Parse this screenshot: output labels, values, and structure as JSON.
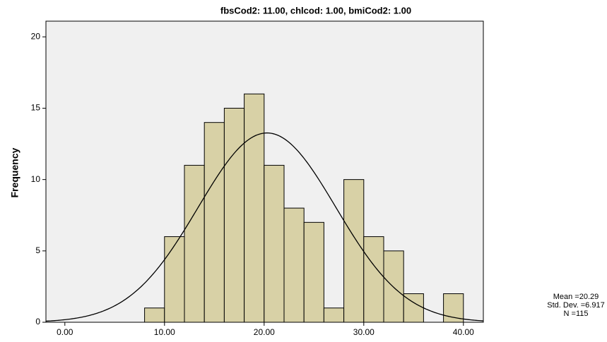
{
  "chart_data": {
    "type": "histogram",
    "title": "fbsCod2: 11.00, chlcod: 1.00, bmiCod2: 1.00",
    "y_label": "Frequency",
    "bins": [
      8,
      10,
      12,
      14,
      16,
      18,
      20,
      22,
      24,
      26,
      28,
      30,
      32,
      34,
      36,
      38,
      40
    ],
    "values": [
      1,
      6,
      11,
      14,
      15,
      16,
      11,
      8,
      7,
      1,
      10,
      6,
      5,
      2,
      0,
      2
    ],
    "color": "#d8d1a6",
    "background": "#f0f0f0",
    "xlim": [
      -1.9,
      42
    ],
    "ylim": [
      0,
      21.1
    ],
    "xticks": [
      {
        "value": 0,
        "label": "0.00"
      },
      {
        "value": 10,
        "label": "10.00"
      },
      {
        "value": 20,
        "label": "20.00"
      },
      {
        "value": 30,
        "label": "30.00"
      },
      {
        "value": 40,
        "label": "40.00"
      }
    ],
    "yticks": [
      0,
      5,
      10,
      15,
      20
    ],
    "stats": {
      "mean": {
        "value": 20.29,
        "label": "Mean =20.29"
      },
      "sd": {
        "value": 6.917,
        "label": "Std. Dev. =6.917"
      },
      "n": {
        "value": 115,
        "label": "N =115"
      }
    }
  }
}
